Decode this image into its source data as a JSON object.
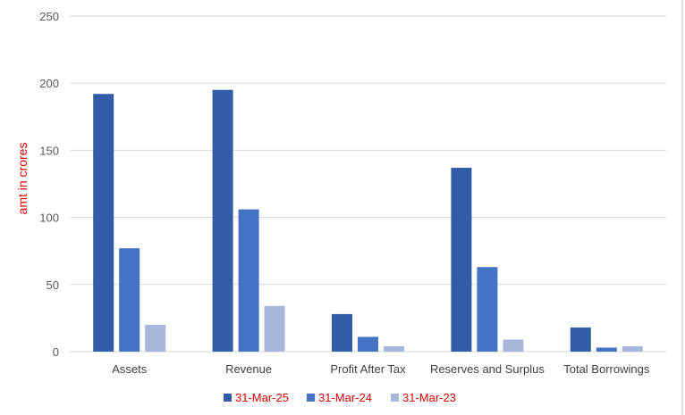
{
  "chart_data": {
    "type": "bar",
    "ylabel": "amt in crores",
    "ylim": [
      0,
      250
    ],
    "yticks": [
      0,
      50,
      100,
      150,
      200,
      250
    ],
    "grid": true,
    "legend_position": "bottom",
    "categories": [
      "Assets",
      "Revenue",
      "Profit After Tax",
      "Reserves and Surplus",
      "Total Borrowings"
    ],
    "series": [
      {
        "name": "31-Mar-25",
        "color": "#335ca6",
        "values": [
          192,
          195,
          28,
          137,
          18
        ]
      },
      {
        "name": "31-Mar-24",
        "color": "#4472c4",
        "values": [
          77,
          106,
          11,
          63,
          3
        ]
      },
      {
        "name": "31-Mar-23",
        "color": "#a9b7dc",
        "values": [
          20,
          34,
          4,
          9,
          4
        ]
      }
    ]
  }
}
